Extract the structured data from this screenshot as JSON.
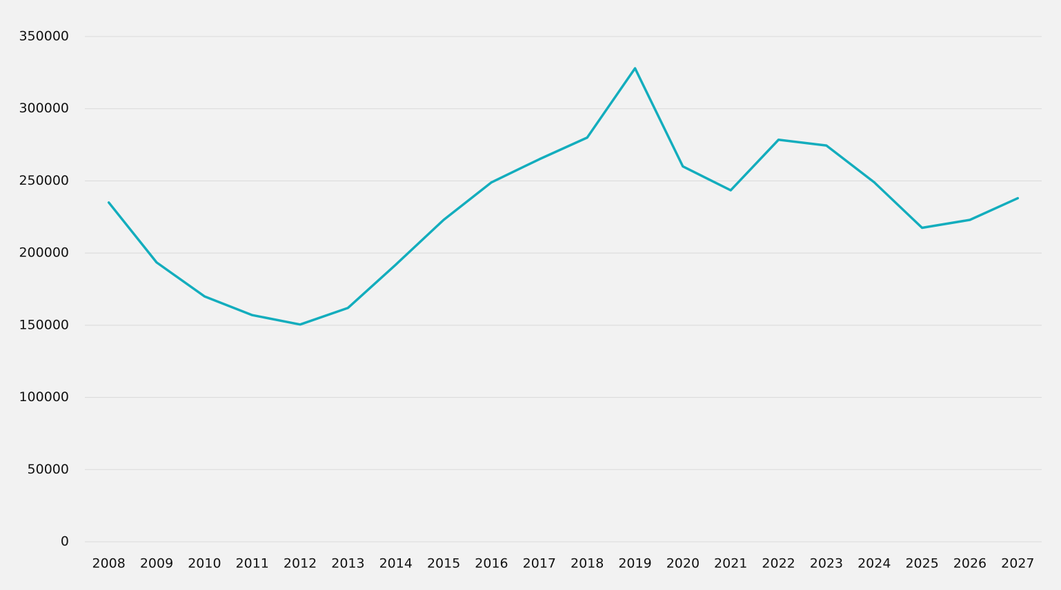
{
  "chart_data": {
    "type": "line",
    "title": "",
    "xlabel": "",
    "ylabel": "",
    "categories": [
      "2008",
      "2009",
      "2010",
      "2011",
      "2012",
      "2013",
      "2014",
      "2015",
      "2016",
      "2017",
      "2018",
      "2019",
      "2020",
      "2021",
      "2022",
      "2023",
      "2024",
      "2025",
      "2026",
      "2027"
    ],
    "series": [
      {
        "values": [
          235000,
          193500,
          170000,
          157000,
          150500,
          162000,
          192000,
          223000,
          249000,
          265000,
          280000,
          328000,
          260000,
          243500,
          278500,
          274500,
          249000,
          217500,
          223000,
          238000
        ]
      }
    ],
    "ylim": [
      0,
      350000
    ],
    "yticks": [
      "0",
      "50000",
      "100000",
      "150000",
      "200000",
      "250000",
      "300000",
      "350000"
    ],
    "grid": true,
    "legend": "none",
    "colors": {
      "series": "#13adbd",
      "grid": "#d9d9d9",
      "background": "#f2f2f2",
      "text": "#111111"
    }
  }
}
